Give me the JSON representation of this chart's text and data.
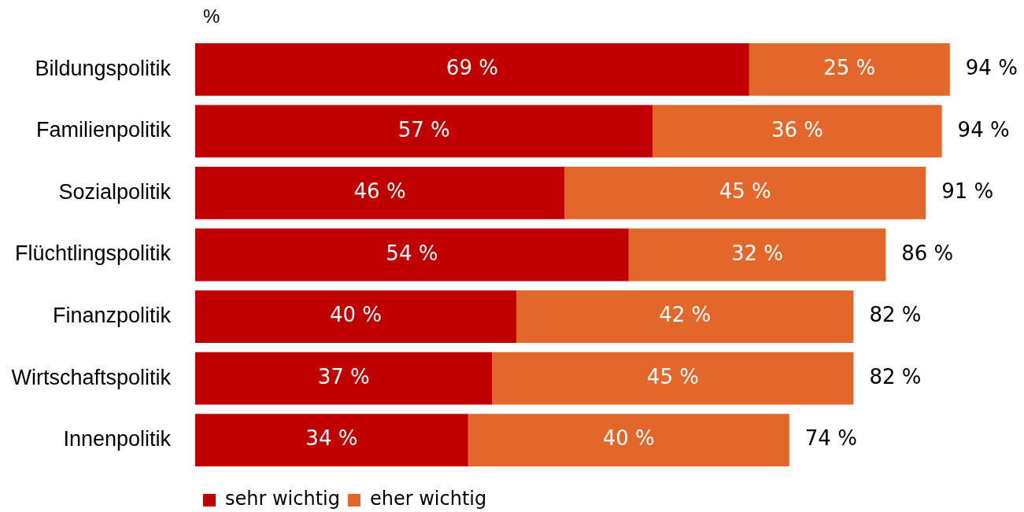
{
  "chart_data": {
    "type": "bar",
    "orientation": "horizontal",
    "stacked": true,
    "xlabel": "%",
    "tick_labels": "y",
    "grid": false,
    "legend": "bottom left",
    "categories": [
      "Bildungspolitik",
      "Familienpolitik",
      "Sozialpolitik",
      "Flüchtlingspolitik",
      "Finanzpolitik",
      "Wirtschaftspolitik",
      "Innenpolitik"
    ],
    "series": [
      {
        "name": "sehr wichtig",
        "color": "#c00000",
        "values": [
          69,
          57,
          46,
          54,
          40,
          37,
          34
        ],
        "value_labels": [
          "69 %",
          "57 %",
          "46 %",
          "54 %",
          "40 %",
          "37 %",
          "34 %"
        ]
      },
      {
        "name": "eher wichtig",
        "color": "#e3672b",
        "values": [
          25,
          36,
          45,
          32,
          42,
          45,
          40
        ],
        "value_labels": [
          "25 %",
          "36 %",
          "45 %",
          "32 %",
          "42 %",
          "45 %",
          "40 %"
        ]
      }
    ],
    "totals": [
      "94 %",
      "94 %",
      "91 %",
      "86 %",
      "82 %",
      "82 %",
      "74 %"
    ]
  }
}
